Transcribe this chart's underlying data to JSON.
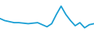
{
  "x": [
    0,
    1,
    2,
    3,
    4,
    5,
    6,
    7,
    8,
    9,
    10,
    11,
    12,
    13,
    14,
    15,
    16,
    17,
    18,
    19,
    20
  ],
  "y": [
    78,
    76,
    75,
    74,
    74,
    73.5,
    73,
    73.5,
    74,
    72,
    70,
    73,
    82,
    90,
    82,
    76,
    71,
    74,
    69,
    72,
    73
  ],
  "line_color": "#1a9fd4",
  "linewidth": 1.3,
  "background_color": "#ffffff",
  "ylim_min": 62,
  "ylim_max": 96
}
